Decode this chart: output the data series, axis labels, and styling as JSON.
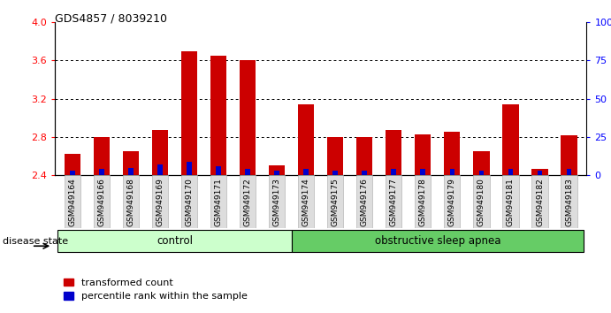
{
  "title": "GDS4857 / 8039210",
  "samples": [
    "GSM949164",
    "GSM949166",
    "GSM949168",
    "GSM949169",
    "GSM949170",
    "GSM949171",
    "GSM949172",
    "GSM949173",
    "GSM949174",
    "GSM949175",
    "GSM949176",
    "GSM949177",
    "GSM949178",
    "GSM949179",
    "GSM949180",
    "GSM949181",
    "GSM949182",
    "GSM949183"
  ],
  "transformed_counts": [
    2.62,
    2.8,
    2.65,
    2.87,
    3.69,
    3.65,
    3.6,
    2.5,
    3.14,
    2.8,
    2.8,
    2.87,
    2.83,
    2.85,
    2.65,
    3.14,
    2.47,
    2.82
  ],
  "percentile_ranks": [
    3,
    4,
    5,
    7,
    9,
    6,
    4,
    3,
    4,
    3,
    3,
    4,
    4,
    4,
    3,
    4,
    3,
    4
  ],
  "ymin": 2.4,
  "ymax": 4.0,
  "yticks_left": [
    2.4,
    2.8,
    3.2,
    3.6,
    4.0
  ],
  "yticks_right": [
    0,
    25,
    50,
    75,
    100
  ],
  "bar_width": 0.55,
  "red_color": "#CC0000",
  "blue_color": "#0000CC",
  "control_count": 8,
  "obstructive_count": 10,
  "control_label": "control",
  "obstructive_label": "obstructive sleep apnea",
  "disease_state_label": "disease state",
  "legend_red": "transformed count",
  "legend_blue": "percentile rank within the sample",
  "control_bg": "#CCFFCC",
  "obstructive_bg": "#66CC66",
  "fig_width": 6.91,
  "fig_height": 3.54
}
